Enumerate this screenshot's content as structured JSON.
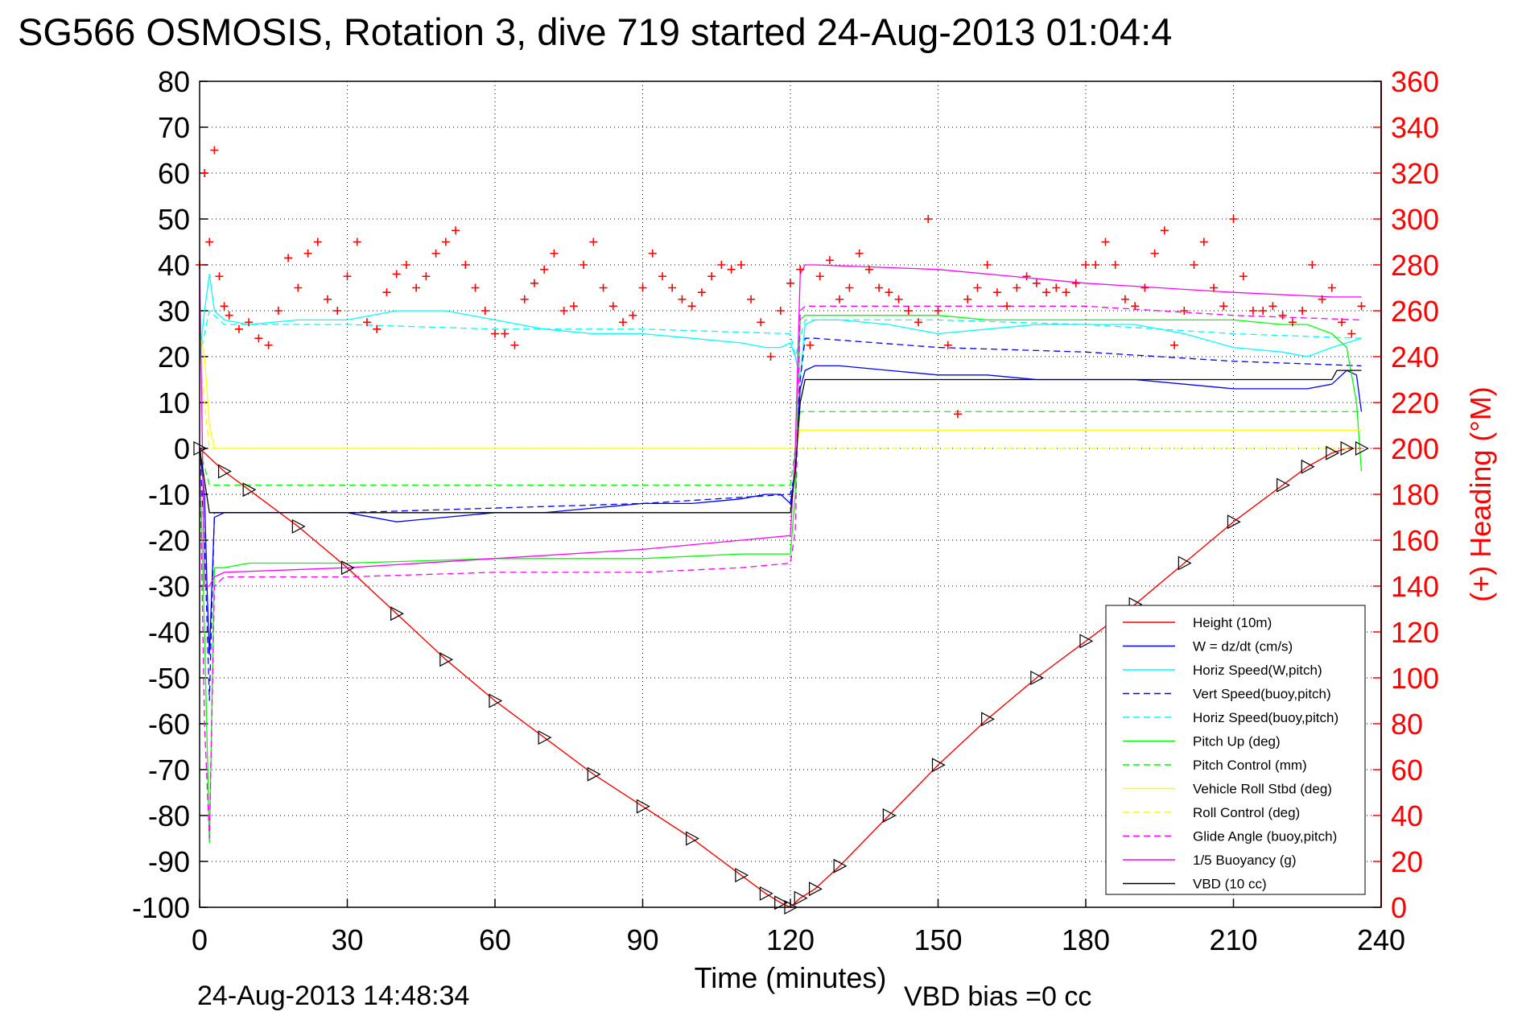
{
  "page": {
    "title": "SG566 OSMOSIS, Rotation 3, dive 719 started 24-Aug-2013 01:04:4",
    "footer_timestamp": "24-Aug-2013 14:48:34",
    "footer_note": "VBD bias =0 cc"
  },
  "colors": {
    "height": "#ff0000",
    "w": "#0000ff",
    "horiz_w": "#00ffff",
    "vert_buoy": "#0000ff",
    "horiz_buoy": "#00ffff",
    "pitch": "#00ff00",
    "pitch_ctl": "#00ff00",
    "roll": "#ffff00",
    "roll_ctl": "#ffff00",
    "glide": "#ff00ff",
    "buoy": "#ff00ff",
    "vbd": "#000000",
    "heading": "#ff0000",
    "grid": "#000000"
  },
  "chart_data": {
    "type": "line",
    "title": "SG566 OSMOSIS, Rotation 3, dive 719 started 24-Aug-2013 01:04:4",
    "xlabel": "Time (minutes)",
    "ylabel": "",
    "y2label": "(+) Heading (°M)",
    "xlim": [
      0,
      240
    ],
    "ylim": [
      -100,
      80
    ],
    "y2lim": [
      0,
      360
    ],
    "grid": true,
    "legend_position": "bottom-right",
    "x_ticks": [
      "0",
      "30",
      "60",
      "90",
      "120",
      "150",
      "180",
      "210",
      "240"
    ],
    "y_ticks": [
      "80",
      "70",
      "60",
      "50",
      "40",
      "30",
      "20",
      "10",
      "0",
      "-10",
      "-20",
      "-30",
      "-40",
      "-50",
      "-60",
      "-70",
      "-80",
      "-90",
      "-100"
    ],
    "y2_ticks": [
      "360",
      "340",
      "320",
      "300",
      "280",
      "260",
      "240",
      "220",
      "200",
      "180",
      "160",
      "140",
      "120",
      "100",
      "80",
      "60",
      "40",
      "20",
      "0"
    ],
    "legend": [
      {
        "label": "Height (10m)",
        "color": "#ff0000",
        "dash": "solid"
      },
      {
        "label": "W = dz/dt (cm/s)",
        "color": "#0000ff",
        "dash": "solid"
      },
      {
        "label": "Horiz Speed(W,pitch)",
        "color": "#00ffff",
        "dash": "solid"
      },
      {
        "label": "Vert Speed(buoy,pitch)",
        "color": "#0000ff",
        "dash": "dashed"
      },
      {
        "label": "Horiz Speed(buoy,pitch)",
        "color": "#00ffff",
        "dash": "dashed"
      },
      {
        "label": "Pitch Up (deg)",
        "color": "#00ff00",
        "dash": "solid"
      },
      {
        "label": "Pitch Control (mm)",
        "color": "#00ff00",
        "dash": "dashed"
      },
      {
        "label": "Vehicle Roll Stbd (deg)",
        "color": "#ffff00",
        "dash": "solid"
      },
      {
        "label": "Roll Control (deg)",
        "color": "#ffff00",
        "dash": "dashed"
      },
      {
        "label": "Glide Angle (buoy,pitch)",
        "color": "#ff00ff",
        "dash": "dashed"
      },
      {
        "label": "1/5 Buoyancy (g)",
        "color": "#ff00ff",
        "dash": "solid"
      },
      {
        "label": "VBD (10 cc)",
        "color": "#000000",
        "dash": "solid"
      }
    ],
    "series": [
      {
        "name": "Height (10m)",
        "key": "height",
        "dash": "solid",
        "x": [
          0,
          5,
          10,
          20,
          30,
          40,
          50,
          60,
          70,
          80,
          90,
          100,
          110,
          115,
          118,
          120,
          122,
          125,
          130,
          140,
          150,
          160,
          170,
          180,
          190,
          200,
          210,
          220,
          225,
          230,
          233,
          236
        ],
        "y": [
          0,
          -5,
          -9,
          -17,
          -26,
          -36,
          -46,
          -55,
          -63,
          -71,
          -78,
          -85,
          -93,
          -97,
          -99,
          -100,
          -98,
          -96,
          -91,
          -80,
          -69,
          -59,
          -50,
          -42,
          -34,
          -25,
          -16,
          -8,
          -4,
          -1,
          0,
          0
        ]
      },
      {
        "name": "W = dz/dt (cm/s)",
        "key": "w",
        "dash": "solid",
        "x": [
          0,
          1,
          1.5,
          2,
          3,
          5,
          10,
          20,
          30,
          40,
          50,
          60,
          70,
          80,
          90,
          100,
          110,
          115,
          118,
          120,
          121,
          122,
          123,
          125,
          130,
          140,
          150,
          160,
          170,
          180,
          190,
          200,
          210,
          220,
          225,
          230,
          233,
          235,
          236
        ],
        "y": [
          0,
          -10,
          -30,
          -45,
          -15,
          -14,
          -14,
          -14,
          -14,
          -16,
          -15,
          -14,
          -14,
          -13,
          -12,
          -12,
          -11,
          -10,
          -10,
          -12,
          -5,
          13,
          17,
          18,
          18,
          17,
          16,
          16,
          15,
          15,
          15,
          14,
          13,
          13,
          13,
          14,
          17,
          16,
          8
        ]
      },
      {
        "name": "Horiz Speed(W,pitch)",
        "key": "horiz_w",
        "dash": "solid",
        "x": [
          0,
          1,
          2,
          3,
          5,
          10,
          20,
          30,
          40,
          50,
          60,
          70,
          80,
          90,
          100,
          110,
          115,
          118,
          120,
          121,
          122,
          123,
          125,
          130,
          140,
          150,
          160,
          170,
          180,
          190,
          200,
          210,
          220,
          225,
          230,
          233,
          236
        ],
        "y": [
          20,
          30,
          38,
          30,
          28,
          27,
          28,
          28,
          30,
          30,
          28,
          26,
          25,
          25,
          24,
          23,
          22,
          22,
          23,
          20,
          15,
          27,
          28,
          28,
          27,
          25,
          26,
          27,
          27,
          27,
          25,
          22,
          21,
          20,
          22,
          23,
          24
        ]
      },
      {
        "name": "Vert Speed(buoy,pitch)",
        "key": "vert_buoy",
        "dash": "dashed",
        "x": [
          0,
          1,
          2,
          3,
          5,
          10,
          30,
          60,
          90,
          120,
          121,
          122,
          123,
          125,
          150,
          180,
          210,
          236
        ],
        "y": [
          0,
          -20,
          -55,
          -14,
          -14,
          -14,
          -14,
          -13,
          -12,
          -10,
          -5,
          15,
          24,
          24,
          22,
          21,
          19,
          18
        ]
      },
      {
        "name": "Horiz Speed(buoy,pitch)",
        "key": "horiz_buoy",
        "dash": "dashed",
        "x": [
          0,
          2,
          5,
          30,
          60,
          90,
          120,
          121,
          123,
          125,
          150,
          180,
          210,
          236
        ],
        "y": [
          20,
          30,
          27,
          27,
          26,
          26,
          25,
          20,
          28,
          28,
          28,
          27,
          25,
          24
        ]
      },
      {
        "name": "Pitch Up (deg)",
        "key": "pitch",
        "dash": "solid",
        "x": [
          0,
          1,
          2,
          3,
          5,
          10,
          30,
          60,
          90,
          110,
          120,
          121,
          122,
          123,
          125,
          130,
          140,
          150,
          160,
          170,
          180,
          190,
          200,
          210,
          220,
          225,
          230,
          233,
          235,
          236
        ],
        "y": [
          0,
          -40,
          -86,
          -26,
          -26,
          -25,
          -25,
          -24,
          -24,
          -23,
          -23,
          -10,
          28,
          29,
          29,
          29,
          29,
          29,
          28,
          28,
          28,
          28,
          28,
          28,
          27,
          27,
          25,
          22,
          10,
          -5
        ]
      },
      {
        "name": "Pitch Control (mm)",
        "key": "pitch_ctl",
        "dash": "dashed",
        "x": [
          0,
          2,
          3,
          120,
          121,
          122,
          236
        ],
        "y": [
          0,
          -8,
          -8,
          -8,
          0,
          8,
          8
        ]
      },
      {
        "name": "Vehicle Roll Stbd (deg)",
        "key": "roll",
        "dash": "solid",
        "x": [
          0,
          1,
          2,
          3,
          5,
          30,
          60,
          90,
          120,
          121,
          122,
          123,
          125,
          150,
          180,
          210,
          236
        ],
        "y": [
          25,
          20,
          5,
          0,
          0,
          0,
          0,
          0,
          0,
          0,
          4,
          4,
          4,
          4,
          4,
          4,
          4
        ]
      },
      {
        "name": "Roll Control (deg)",
        "key": "roll_ctl",
        "dash": "dashed",
        "x": [
          0,
          2,
          3,
          120,
          121,
          122,
          123,
          236
        ],
        "y": [
          20,
          0,
          0,
          0,
          0,
          0,
          0,
          0
        ]
      },
      {
        "name": "Glide Angle (buoy,pitch)",
        "key": "glide",
        "dash": "dashed",
        "x": [
          0,
          1,
          2,
          3,
          5,
          30,
          60,
          90,
          110,
          120,
          121,
          122,
          123,
          125,
          150,
          180,
          210,
          236
        ],
        "y": [
          0,
          -60,
          -85,
          -30,
          -28,
          -28,
          -27,
          -27,
          -26,
          -25,
          -18,
          30,
          31,
          31,
          31,
          31,
          29,
          28
        ]
      },
      {
        "name": "1/5 Buoyancy (g)",
        "key": "buoy",
        "dash": "solid",
        "x": [
          0,
          1,
          2,
          3,
          5,
          30,
          60,
          90,
          120,
          121,
          122,
          123,
          125,
          150,
          180,
          210,
          230,
          236
        ],
        "y": [
          40,
          -30,
          -30,
          -28,
          -27,
          -26,
          -24,
          -22,
          -19,
          0,
          38,
          40,
          40,
          39,
          36,
          34,
          33,
          33
        ]
      },
      {
        "name": "VBD (10 cc)",
        "key": "vbd",
        "dash": "solid",
        "x": [
          0,
          2,
          3,
          120,
          121,
          122,
          123,
          125,
          150,
          180,
          210,
          230,
          231,
          236
        ],
        "y": [
          0,
          -14,
          -14,
          -14,
          -5,
          10,
          15,
          15,
          15,
          15,
          15,
          15,
          17,
          17
        ]
      },
      {
        "name": "(+) Heading (°M)",
        "key": "heading",
        "axis": "right",
        "marker": "+",
        "x": [
          0,
          1,
          2,
          3,
          4,
          5,
          6,
          8,
          10,
          12,
          14,
          16,
          18,
          20,
          22,
          24,
          26,
          28,
          30,
          32,
          34,
          36,
          38,
          40,
          42,
          44,
          46,
          48,
          50,
          52,
          54,
          56,
          58,
          60,
          62,
          64,
          66,
          68,
          70,
          72,
          74,
          76,
          78,
          80,
          82,
          84,
          86,
          88,
          90,
          92,
          94,
          96,
          98,
          100,
          102,
          104,
          106,
          108,
          110,
          112,
          114,
          116,
          118,
          120,
          122,
          124,
          126,
          128,
          130,
          132,
          134,
          136,
          138,
          140,
          142,
          144,
          146,
          148,
          150,
          152,
          154,
          156,
          158,
          160,
          162,
          164,
          166,
          168,
          170,
          172,
          174,
          176,
          178,
          180,
          182,
          184,
          186,
          188,
          190,
          192,
          194,
          196,
          198,
          200,
          202,
          204,
          206,
          208,
          210,
          212,
          214,
          216,
          218,
          220,
          222,
          224,
          226,
          228,
          230,
          232,
          234,
          236
        ],
        "y": [
          280,
          320,
          290,
          330,
          275,
          262,
          258,
          252,
          255,
          248,
          245,
          260,
          283,
          270,
          285,
          290,
          265,
          260,
          275,
          290,
          255,
          252,
          268,
          276,
          280,
          270,
          275,
          285,
          290,
          295,
          280,
          270,
          260,
          250,
          250,
          245,
          265,
          272,
          278,
          285,
          260,
          262,
          280,
          290,
          270,
          262,
          255,
          258,
          270,
          285,
          275,
          270,
          265,
          262,
          268,
          275,
          280,
          278,
          280,
          265,
          255,
          240,
          260,
          272,
          278,
          245,
          275,
          282,
          265,
          270,
          285,
          278,
          270,
          268,
          265,
          260,
          255,
          300,
          260,
          245,
          215,
          265,
          270,
          280,
          268,
          262,
          270,
          275,
          272,
          268,
          270,
          268,
          272,
          280,
          280,
          290,
          280,
          265,
          262,
          270,
          285,
          295,
          245,
          260,
          280,
          290,
          270,
          262,
          300,
          275,
          260,
          260,
          262,
          258,
          255,
          260,
          280,
          265,
          270,
          255,
          250,
          262
        ]
      }
    ]
  }
}
